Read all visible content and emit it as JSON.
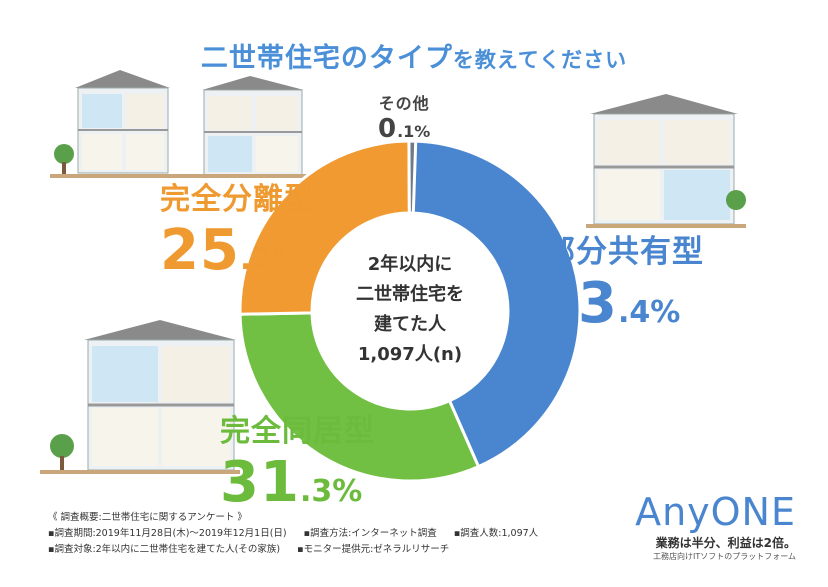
{
  "title": {
    "main": "二世帯住宅のタイプ",
    "sub": "を教えてください"
  },
  "center": {
    "line1": "2年以内に",
    "line2": "二世帯住宅を",
    "line3": "建てた人",
    "line4": "1,097人(n)"
  },
  "colors": {
    "blue": "#4a86cf",
    "green": "#72c043",
    "orange": "#f09a31",
    "gray": "#6f7a86"
  },
  "chart_data": {
    "type": "pie",
    "title": "二世帯住宅のタイプを教えてください",
    "slices": [
      {
        "label": "部分共有型",
        "value": 43.4,
        "int": "43",
        "dec": ".4%",
        "color": "#4a86cf"
      },
      {
        "label": "完全同居型",
        "value": 31.3,
        "int": "31",
        "dec": ".3%",
        "color": "#72c043"
      },
      {
        "label": "完全分離型",
        "value": 25.2,
        "int": "25",
        "dec": ".2%",
        "color": "#f09a31"
      },
      {
        "label": "その他",
        "value": 0.1,
        "int": "0",
        "dec": ".1%",
        "color": "#6f7a86"
      }
    ],
    "n": "1,097人(n)"
  },
  "footer": {
    "heading": "《 調査概要:二世帯住宅に関するアンケート 》",
    "period": "▪調査期間:2019年11月28日(木)〜2019年12月1日(日)",
    "method": "▪調査方法:インターネット調査",
    "count": "▪調査人数:1,097人",
    "target": "▪調査対象:2年以内に二世帯住宅を建てた人(その家族)",
    "provider": "▪モニター提供元:ゼネラルリサーチ"
  },
  "brand": {
    "logo": "AnyONE",
    "tagline": "業務は半分、利益は2倍。",
    "sub": "工務店向けITソフトのプラットフォーム"
  }
}
